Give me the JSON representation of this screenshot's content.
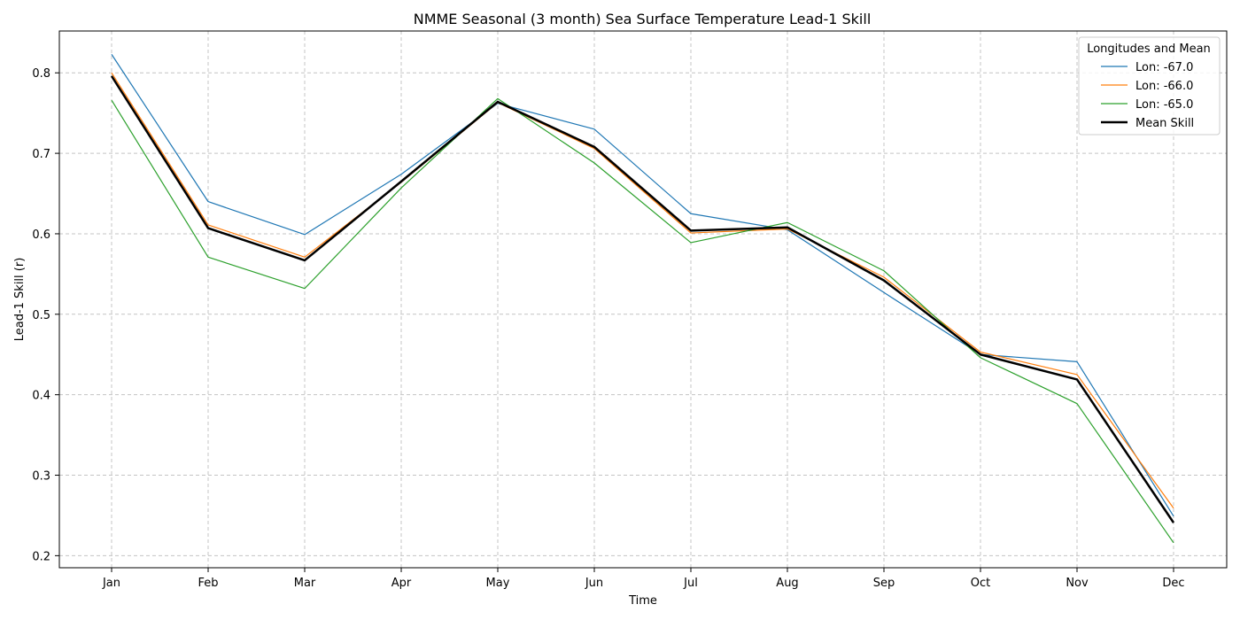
{
  "chart_data": {
    "type": "line",
    "title": "NMME Seasonal (3 month) Sea Surface Temperature Lead-1 Skill",
    "xlabel": "Time",
    "ylabel": "Lead-1 Skill (r)",
    "categories": [
      "Jan",
      "Feb",
      "Mar",
      "Apr",
      "May",
      "Jun",
      "Jul",
      "Aug",
      "Sep",
      "Oct",
      "Nov",
      "Dec"
    ],
    "ylim": [
      0.185,
      0.852
    ],
    "yticks": [
      0.2,
      0.3,
      0.4,
      0.5,
      0.6,
      0.7,
      0.8
    ],
    "grid": true,
    "legend": {
      "title": "Longitudes and Mean",
      "placement": "top-right"
    },
    "series": [
      {
        "name": "Lon: -67.0",
        "color": "#1f77b4",
        "values": [
          0.823,
          0.64,
          0.599,
          0.674,
          0.762,
          0.73,
          0.625,
          0.605,
          0.527,
          0.45,
          0.441,
          0.249
        ]
      },
      {
        "name": "Lon: -66.0",
        "color": "#ff7f0e",
        "values": [
          0.8,
          0.611,
          0.571,
          0.664,
          0.763,
          0.706,
          0.601,
          0.606,
          0.546,
          0.453,
          0.425,
          0.259
        ]
      },
      {
        "name": "Lon: -65.0",
        "color": "#2ca02c",
        "values": [
          0.766,
          0.571,
          0.532,
          0.657,
          0.768,
          0.688,
          0.589,
          0.614,
          0.554,
          0.446,
          0.389,
          0.216
        ]
      },
      {
        "name": "Mean Skill",
        "color": "#000000",
        "bold": true,
        "values": [
          0.796,
          0.607,
          0.567,
          0.665,
          0.764,
          0.708,
          0.604,
          0.608,
          0.542,
          0.45,
          0.419,
          0.241
        ]
      }
    ]
  }
}
